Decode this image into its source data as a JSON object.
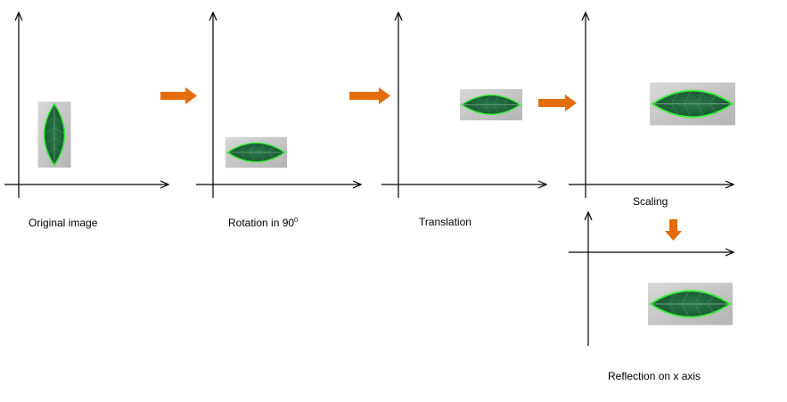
{
  "captions": {
    "original": "Original image",
    "rotation_prefix": "Rotation in 90",
    "rotation_sup": "0",
    "translation": "Translation",
    "scaling": "Scaling",
    "reflection": "Reflection on x axis"
  },
  "colors": {
    "arrow": "#e46c0a",
    "axis": "#000000",
    "leaf_fill": "#1f6b3e",
    "leaf_outline": "#39e639",
    "photo_bg": "#c9c9c9"
  },
  "icons": {
    "transform_arrow": "orange-block-arrow-icon",
    "leaf_image": "leaf-photo-icon"
  }
}
